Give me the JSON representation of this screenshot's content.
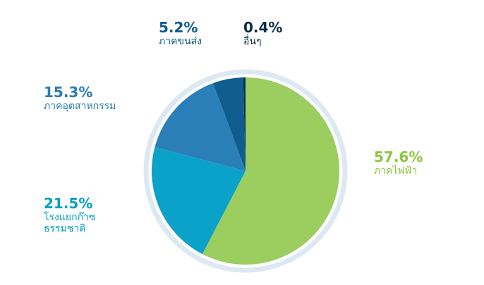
{
  "chart_data": {
    "type": "pie",
    "categories": [
      "ภาคไฟฟ้า",
      "โรงแยกก๊าซ\nธรรมชาติ",
      "ภาคอุตสาหกรรม",
      "ภาคขนส่ง",
      "อื่นๆ"
    ],
    "values": [
      57.6,
      21.5,
      15.3,
      5.2,
      0.4
    ],
    "value_labels": [
      "57.6%",
      "21.5%",
      "15.3%",
      "5.2%",
      "0.4%"
    ],
    "colors": [
      "#9bcd5f",
      "#0aa2c9",
      "#2b7fb8",
      "#0e5d8e",
      "#0b2e4c"
    ]
  }
}
